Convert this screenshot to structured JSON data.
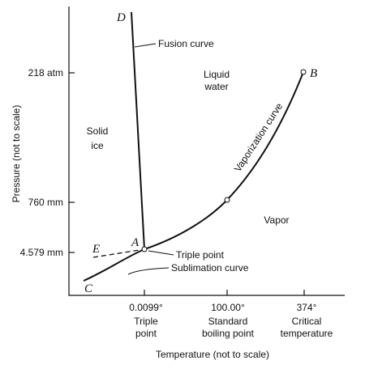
{
  "axes": {
    "y_label": "Pressure (not to scale)",
    "x_label": "Temperature (not to scale)",
    "y_ticks": [
      "218 atm",
      "760 mm",
      "4.579 mm"
    ],
    "x_ticks": [
      {
        "label": "0.0099°",
        "caption": [
          "Triple",
          "point"
        ]
      },
      {
        "label": "100.00°",
        "caption": [
          "Standard",
          "boiling point"
        ]
      },
      {
        "label": "374°",
        "caption": [
          "Critical",
          "temperature"
        ]
      }
    ]
  },
  "regions": {
    "solid": [
      "Solid",
      "ice"
    ],
    "liquid": [
      "Liquid",
      "water"
    ],
    "vapor": "Vapor"
  },
  "curves": {
    "fusion": "Fusion curve",
    "vaporization": "Vaporization curve",
    "sublimation": "Sublimation curve",
    "triple": "Triple point"
  },
  "points": {
    "A": "A",
    "B": "B",
    "C": "C",
    "D": "D",
    "E": "E"
  }
}
